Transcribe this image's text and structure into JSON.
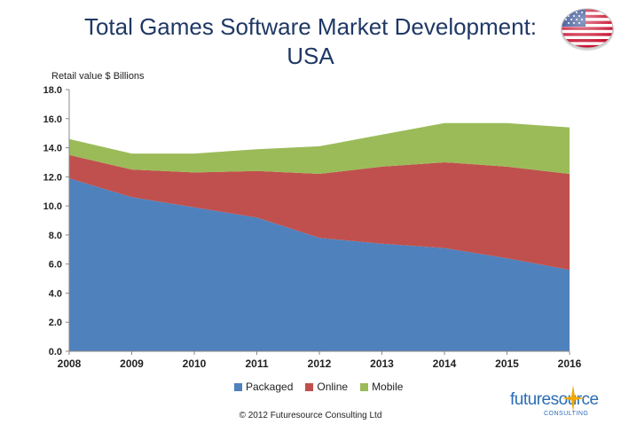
{
  "title_line1": "Total Games Software Market Development:",
  "title_line2": "USA",
  "copyright": "© 2012 Futuresource Consulting Ltd",
  "logo": {
    "name": "futuresource",
    "sub": "CONSULTING",
    "color": "#2a6db5"
  },
  "flag": "usa-flag-icon",
  "chart_data": {
    "type": "area",
    "stacked": true,
    "ylabel": "Retail value $ Billions",
    "xlabel": "",
    "categories": [
      "2008",
      "2009",
      "2010",
      "2011",
      "2012",
      "2013",
      "2014",
      "2015",
      "2016"
    ],
    "ylim": [
      0,
      18
    ],
    "yticks": [
      "0.0",
      "2.0",
      "4.0",
      "6.0",
      "8.0",
      "10.0",
      "12.0",
      "14.0",
      "16.0",
      "18.0"
    ],
    "series": [
      {
        "name": "Packaged",
        "color": "#4f81bd",
        "values": [
          11.9,
          10.6,
          9.9,
          9.2,
          7.8,
          7.4,
          7.1,
          6.4,
          5.6
        ]
      },
      {
        "name": "Online",
        "color": "#c0504d",
        "values": [
          1.6,
          1.9,
          2.4,
          3.2,
          4.4,
          5.3,
          5.9,
          6.3,
          6.6
        ]
      },
      {
        "name": "Mobile",
        "color": "#9bbb59",
        "values": [
          1.1,
          1.1,
          1.3,
          1.5,
          1.9,
          2.2,
          2.7,
          3.0,
          3.2
        ]
      }
    ],
    "legend_position": "bottom",
    "grid": false
  }
}
